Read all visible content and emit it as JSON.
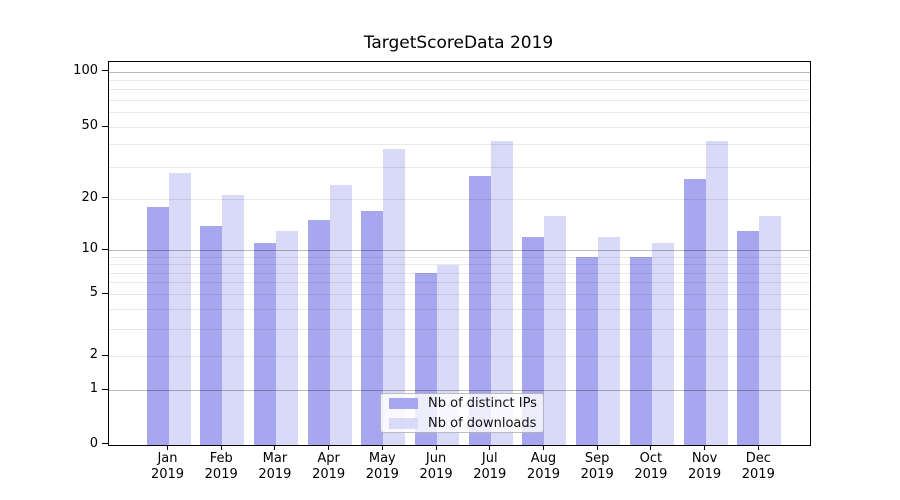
{
  "title": "TargetScoreData 2019",
  "chart_data": {
    "type": "bar",
    "title": "TargetScoreData 2019",
    "categories": [
      "Jan 2019",
      "Feb 2019",
      "Mar 2019",
      "Apr 2019",
      "May 2019",
      "Jun 2019",
      "Jul 2019",
      "Aug 2019",
      "Sep 2019",
      "Oct 2019",
      "Nov 2019",
      "Dec 2019"
    ],
    "series": [
      {
        "name": "Nb of distinct IPs",
        "color": "#a7a7f0",
        "values": [
          18,
          14,
          11,
          15,
          17,
          7,
          27,
          12,
          9,
          9,
          26,
          13
        ]
      },
      {
        "name": "Nb of downloads",
        "color": "#d9d9f8",
        "values": [
          28,
          21,
          13,
          24,
          38,
          8,
          42,
          16,
          12,
          11,
          42,
          16
        ]
      }
    ],
    "yscale": "asinh (log-like, linear near 0)",
    "yticks": [
      0,
      1,
      2,
      5,
      10,
      20,
      50,
      100
    ],
    "yticks_minor": [
      3,
      4,
      6,
      7,
      8,
      9,
      30,
      40,
      60,
      70,
      80,
      90
    ],
    "ylim": [
      0,
      120
    ],
    "grid": true,
    "grid_above_bars": true,
    "legend_position": "lower center",
    "background_color": "#ffffff",
    "text_color": "#000000"
  }
}
